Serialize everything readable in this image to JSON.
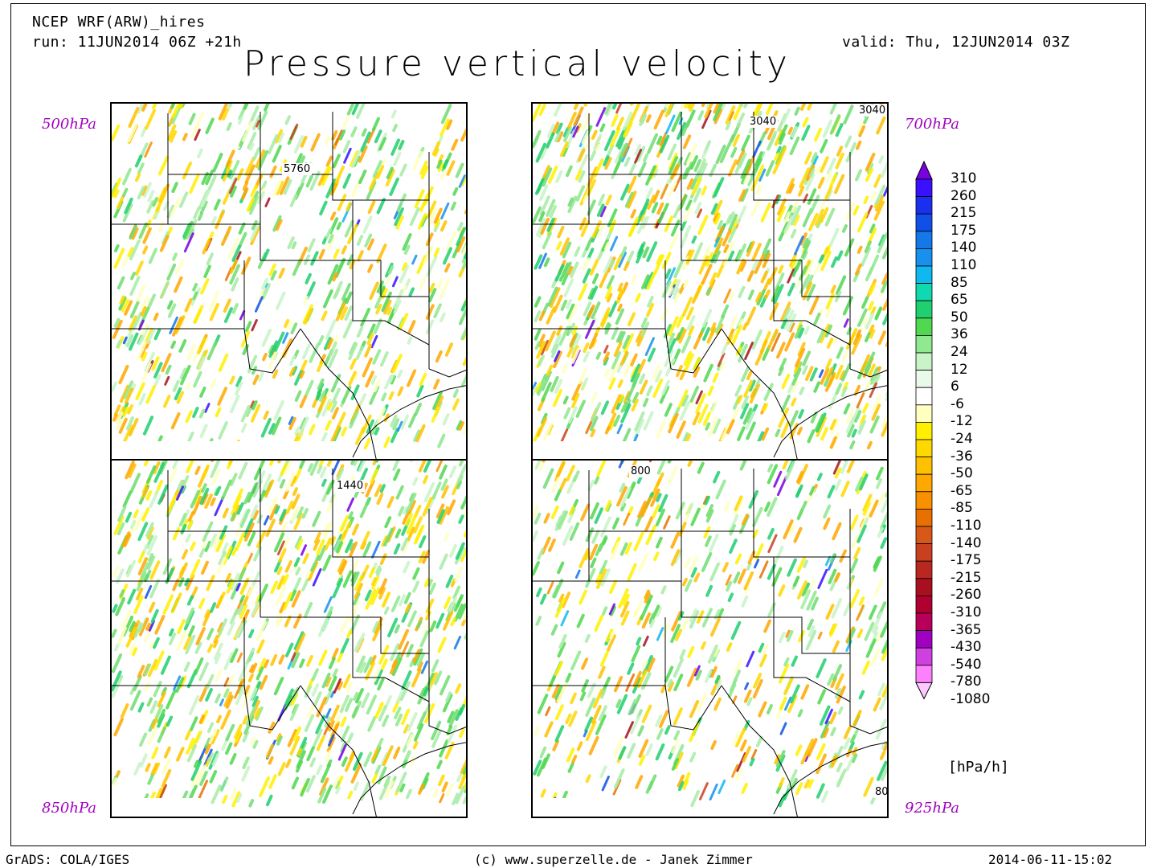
{
  "header": {
    "model": "NCEP WRF(ARW)_hires",
    "run": "run: 11JUN2014 06Z +21h",
    "valid": "valid: Thu, 12JUN2014 03Z",
    "title": "Pressure vertical velocity"
  },
  "panels": [
    {
      "level": "500hPa",
      "contour_label": "5760"
    },
    {
      "level": "700hPa",
      "contour_label": "3040",
      "contour_label_2": "3040"
    },
    {
      "level": "850hPa",
      "contour_label": "1440"
    },
    {
      "level": "925hPa",
      "contour_label": "800",
      "contour_label_2": "80"
    }
  ],
  "colorbar": {
    "labels": [
      "310",
      "260",
      "215",
      "175",
      "140",
      "110",
      "85",
      "65",
      "50",
      "36",
      "24",
      "12",
      "6",
      "-6",
      "-12",
      "-24",
      "-36",
      "-50",
      "-65",
      "-85",
      "-110",
      "-140",
      "-175",
      "-215",
      "-260",
      "-310",
      "-365",
      "-430",
      "-540",
      "-780",
      "-1080"
    ],
    "colors": [
      "#7a00e0",
      "#3a10ff",
      "#1a30ee",
      "#1050e8",
      "#1478e8",
      "#1890ee",
      "#10b8f0",
      "#10d8b0",
      "#20d070",
      "#50d850",
      "#90e890",
      "#c8f4c8",
      "#eafaea",
      "#ffffff",
      "#ffffc0",
      "#fff000",
      "#ffd800",
      "#ffc000",
      "#ffa800",
      "#f89000",
      "#e87000",
      "#d85818",
      "#c84020",
      "#b82820",
      "#a81020",
      "#b00030",
      "#b8005a",
      "#a000c0",
      "#d040e0",
      "#ff80ff",
      "#ffc8ff"
    ],
    "units": "[hPa/h]"
  },
  "footer": {
    "left": "GrADS: COLA/IGES",
    "center": "(c) www.superzelle.de - Janek Zimmer",
    "right": "2014-06-11-15:02"
  }
}
